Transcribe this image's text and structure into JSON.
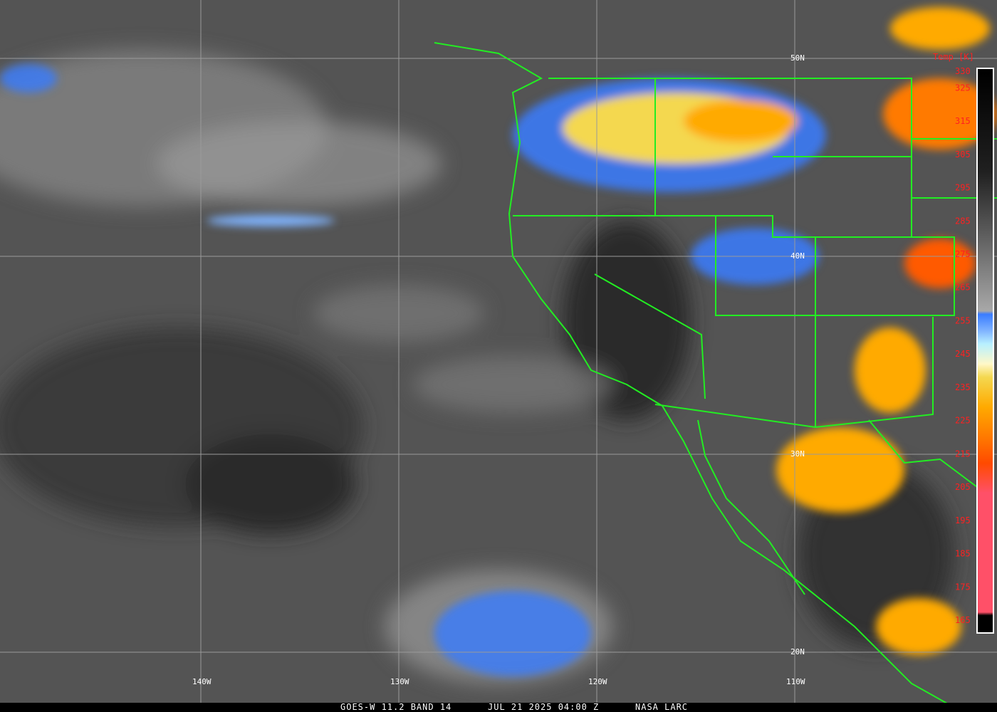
{
  "caption": {
    "satellite": "GOES-W 11.2 BAND 14",
    "datetime": "JUL 21 2025 04:00 Z",
    "credit": "NASA LARC"
  },
  "grid": {
    "latitudes": [
      {
        "label": "50N",
        "value": 50
      },
      {
        "label": "40N",
        "value": 40
      },
      {
        "label": "30N",
        "value": 30
      },
      {
        "label": "20N",
        "value": 20
      }
    ],
    "longitudes": [
      {
        "label": "140W",
        "value": -140
      },
      {
        "label": "130W",
        "value": -130
      },
      {
        "label": "120W",
        "value": -120
      },
      {
        "label": "110W",
        "value": -110
      }
    ],
    "line_color": "#9a9a9a",
    "border_color": "#22ee22"
  },
  "colorbar": {
    "title": "Temp [K]",
    "ticks": [
      330,
      325,
      315,
      305,
      295,
      285,
      275,
      265,
      255,
      245,
      235,
      225,
      215,
      205,
      195,
      185,
      175,
      165
    ],
    "range": [
      165,
      330
    ],
    "label_color": "#ff2020",
    "stops": [
      {
        "k": 330,
        "color": "#000000"
      },
      {
        "k": 300,
        "color": "#202020"
      },
      {
        "k": 258,
        "color": "#a8a8a8"
      },
      {
        "k": 257,
        "color": "#3a7cff"
      },
      {
        "k": 252,
        "color": "#80b4ff"
      },
      {
        "k": 248,
        "color": "#b8f0ff"
      },
      {
        "k": 242,
        "color": "#fff8c8"
      },
      {
        "k": 238,
        "color": "#f4d850"
      },
      {
        "k": 229,
        "color": "#ffaa00"
      },
      {
        "k": 220,
        "color": "#ff7a00"
      },
      {
        "k": 212,
        "color": "#ff4a00"
      },
      {
        "k": 203,
        "color": "#ff5068"
      },
      {
        "k": 167,
        "color": "#ff5068"
      },
      {
        "k": 166,
        "color": "#000000"
      }
    ]
  }
}
